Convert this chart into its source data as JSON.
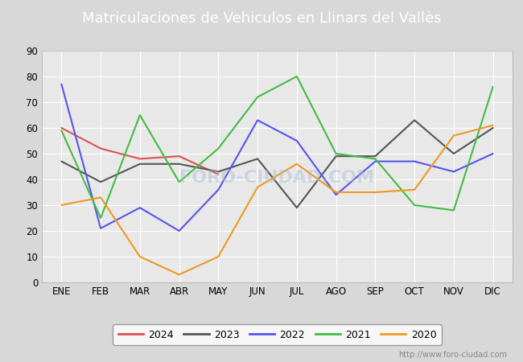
{
  "title": "Matriculaciones de Vehiculos en Llinars del Vallès",
  "months": [
    "ENE",
    "FEB",
    "MAR",
    "ABR",
    "MAY",
    "JUN",
    "JUL",
    "AGO",
    "SEP",
    "OCT",
    "NOV",
    "DIC"
  ],
  "series": {
    "2024": [
      60,
      52,
      48,
      49,
      42,
      null,
      null,
      null,
      null,
      null,
      null,
      null
    ],
    "2023": [
      47,
      39,
      46,
      46,
      43,
      48,
      29,
      49,
      49,
      63,
      50,
      60
    ],
    "2022": [
      77,
      21,
      29,
      20,
      36,
      63,
      55,
      34,
      47,
      47,
      43,
      50
    ],
    "2021": [
      59,
      25,
      65,
      39,
      52,
      72,
      80,
      50,
      48,
      30,
      28,
      76
    ],
    "2020": [
      30,
      33,
      10,
      3,
      10,
      37,
      46,
      35,
      35,
      36,
      57,
      61
    ]
  },
  "colors": {
    "2024": "#e05050",
    "2023": "#555555",
    "2022": "#5555ee",
    "2021": "#44bb44",
    "2020": "#ee9922"
  },
  "ylim": [
    0,
    90
  ],
  "yticks": [
    0,
    10,
    20,
    30,
    40,
    50,
    60,
    70,
    80,
    90
  ],
  "background_color": "#d8d8d8",
  "plot_bg_color": "#e8e8e8",
  "title_bg_color": "#4472c4",
  "title_color": "white",
  "watermark_text": "http://www.foro-ciudad.com",
  "watermark_overlay": "FORO-CIUDAD.COM",
  "title_fontsize": 13,
  "legend_years": [
    "2024",
    "2023",
    "2022",
    "2021",
    "2020"
  ]
}
